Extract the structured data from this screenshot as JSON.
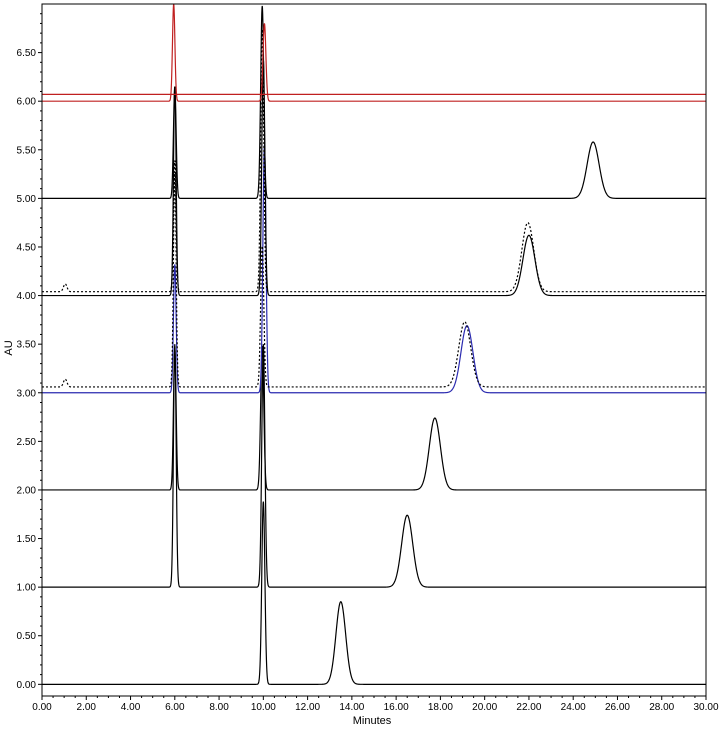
{
  "chart_data": {
    "type": "line",
    "xlabel": "Minutes",
    "ylabel": "AU",
    "xlim": [
      0,
      30
    ],
    "ylim": [
      -0.12,
      7.0
    ],
    "x_ticks": [
      "0.00",
      "2.00",
      "4.00",
      "6.00",
      "8.00",
      "10.00",
      "12.00",
      "14.00",
      "16.00",
      "18.00",
      "20.00",
      "22.00",
      "24.00",
      "26.00",
      "28.00",
      "30.00"
    ],
    "y_ticks": [
      {
        "value": 0.0,
        "label": "0.00"
      },
      {
        "value": 0.5,
        "label": "0.50"
      },
      {
        "value": 1.0,
        "label": "1.00"
      },
      {
        "value": 1.5,
        "label": "1.50"
      },
      {
        "value": 2.0,
        "label": "2.00"
      },
      {
        "value": 2.5,
        "label": "2.50"
      },
      {
        "value": 3.0,
        "label": "3.00"
      },
      {
        "value": 3.5,
        "label": "3.50"
      },
      {
        "value": 4.0,
        "label": "4.00"
      },
      {
        "value": 4.5,
        "label": "4.50"
      },
      {
        "value": 5.0,
        "label": "5.00"
      },
      {
        "value": 5.5,
        "label": "5.50"
      },
      {
        "value": 6.0,
        "label": "6.00"
      },
      {
        "value": 6.5,
        "label": "6.50"
      }
    ],
    "grid": false,
    "legend": "none",
    "series": [
      {
        "color": "#000000",
        "dashed": false,
        "baseline": 0.0,
        "peaks": [
          {
            "t": 10.0,
            "h": 1.88,
            "w": 0.07
          },
          {
            "t": 13.5,
            "h": 0.85,
            "w": 0.22
          }
        ]
      },
      {
        "color": "#000000",
        "dashed": false,
        "baseline": 1.0,
        "peaks": [
          {
            "t": 6.0,
            "h": 2.5,
            "w": 0.06
          },
          {
            "t": 10.0,
            "h": 2.5,
            "w": 0.07
          },
          {
            "t": 16.5,
            "h": 0.74,
            "w": 0.25
          }
        ]
      },
      {
        "color": "#000000",
        "dashed": false,
        "baseline": 2.0,
        "peaks": [
          {
            "t": 6.0,
            "h": 1.45,
            "w": 0.06
          },
          {
            "t": 9.95,
            "h": 1.48,
            "w": 0.07
          },
          {
            "t": 17.75,
            "h": 0.74,
            "w": 0.25
          }
        ]
      },
      {
        "color": "#2b2bb0",
        "dashed": false,
        "baseline": 3.0,
        "peaks": [
          {
            "t": 6.0,
            "h": 1.32,
            "w": 0.06
          },
          {
            "t": 10.05,
            "h": 2.55,
            "w": 0.07
          },
          {
            "t": 19.2,
            "h": 0.69,
            "w": 0.27
          }
        ]
      },
      {
        "color": "#000000",
        "dashed": true,
        "baseline": 3.06,
        "peaks": [
          {
            "t": 1.05,
            "h": 0.08,
            "w": 0.08
          },
          {
            "t": 6.0,
            "h": 2.2,
            "w": 0.06
          },
          {
            "t": 9.95,
            "h": 1.45,
            "w": 0.07
          },
          {
            "t": 19.1,
            "h": 0.67,
            "w": 0.27
          }
        ]
      },
      {
        "color": "#000000",
        "dashed": false,
        "baseline": 4.0,
        "peaks": [
          {
            "t": 6.0,
            "h": 2.15,
            "w": 0.06
          },
          {
            "t": 10.0,
            "h": 2.43,
            "w": 0.07
          },
          {
            "t": 22.0,
            "h": 0.62,
            "w": 0.27
          }
        ]
      },
      {
        "color": "#000000",
        "dashed": true,
        "baseline": 4.04,
        "peaks": [
          {
            "t": 1.05,
            "h": 0.08,
            "w": 0.08
          },
          {
            "t": 6.0,
            "h": 1.35,
            "w": 0.06
          },
          {
            "t": 9.95,
            "h": 2.7,
            "w": 0.07
          },
          {
            "t": 21.95,
            "h": 0.71,
            "w": 0.27
          }
        ]
      },
      {
        "color": "#000000",
        "dashed": false,
        "baseline": 5.0,
        "peaks": [
          {
            "t": 6.0,
            "h": 1.15,
            "w": 0.06
          },
          {
            "t": 9.95,
            "h": 1.98,
            "w": 0.07
          },
          {
            "t": 24.9,
            "h": 0.58,
            "w": 0.27
          }
        ]
      },
      {
        "color": "#c02020",
        "dashed": false,
        "baseline": 6.0,
        "peaks": [
          {
            "t": 5.95,
            "h": 1.0,
            "w": 0.055
          },
          {
            "t": 10.05,
            "h": 0.8,
            "w": 0.065
          }
        ]
      },
      {
        "color": "#c02020",
        "dashed": false,
        "baseline": 6.07,
        "peaks": []
      }
    ]
  }
}
